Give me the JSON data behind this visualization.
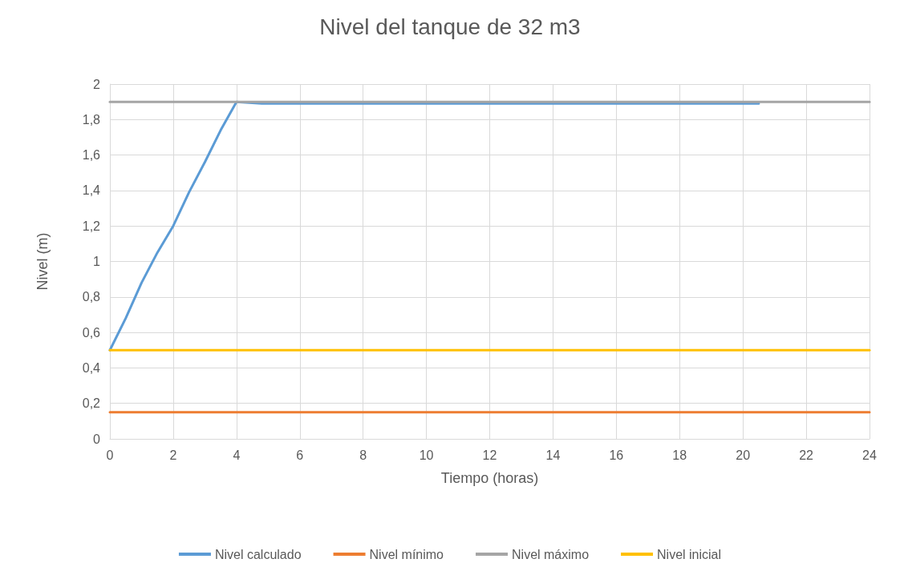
{
  "chart_data": {
    "type": "line",
    "title": "Nivel del tanque de 32 m3",
    "xlabel": "Tiempo (horas)",
    "ylabel": "Nivel (m)",
    "xlim": [
      0,
      24
    ],
    "xticks": [
      0,
      2,
      4,
      6,
      8,
      10,
      12,
      14,
      16,
      18,
      20,
      22,
      24
    ],
    "ylim": [
      0,
      2
    ],
    "yticks": [
      0,
      {
        "value": 0.2,
        "label": "0,2"
      },
      {
        "value": 0.4,
        "label": "0,4"
      },
      {
        "value": 0.6,
        "label": "0,6"
      },
      {
        "value": 0.8,
        "label": "0,8"
      },
      1,
      {
        "value": 1.2,
        "label": "1,2"
      },
      {
        "value": 1.4,
        "label": "1,4"
      },
      {
        "value": 1.6,
        "label": "1,6"
      },
      {
        "value": 1.8,
        "label": "1,8"
      },
      2
    ],
    "grid": true,
    "legend": "bottom",
    "marker": "none",
    "line_style": "solid",
    "series": [
      {
        "name": "Nivel calculado",
        "color": "#5b9bd5",
        "x": [
          0,
          0.5,
          1,
          1.5,
          2,
          2.5,
          3,
          3.5,
          4,
          4.8,
          6,
          7,
          8,
          9,
          10,
          11,
          12,
          13,
          14,
          15,
          16,
          17,
          18,
          19,
          20,
          20.5
        ],
        "values": [
          0.5,
          0.68,
          0.88,
          1.05,
          1.2,
          1.39,
          1.56,
          1.74,
          1.9,
          1.89,
          1.89,
          1.89,
          1.89,
          1.89,
          1.89,
          1.89,
          1.89,
          1.89,
          1.89,
          1.89,
          1.89,
          1.89,
          1.89,
          1.89,
          1.89,
          1.89
        ]
      },
      {
        "name": "Nivel mínimo",
        "color": "#ed7d31",
        "x": [
          0,
          24
        ],
        "values": [
          0.15,
          0.15
        ]
      },
      {
        "name": "Nivel máximo",
        "color": "#a5a5a5",
        "x": [
          0,
          24
        ],
        "values": [
          1.9,
          1.9
        ]
      },
      {
        "name": "Nivel inicial",
        "color": "#ffc000",
        "x": [
          0,
          24
        ],
        "values": [
          0.5,
          0.5
        ]
      }
    ]
  }
}
